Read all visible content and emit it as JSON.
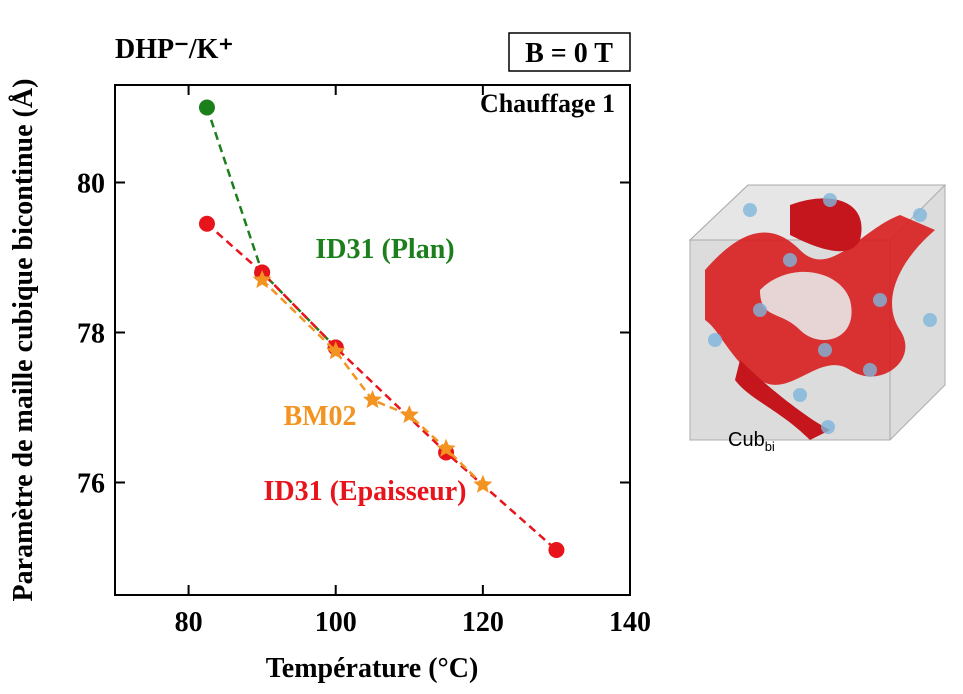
{
  "chart_data": {
    "type": "scatter",
    "title": "DHP⁻/K⁺",
    "annotations": [
      "B = 0 T",
      "Chauffage 1"
    ],
    "x_label": "Température (°C)",
    "y_label": "Paramètre de maille cubique bicontinue (Å)",
    "xlim": [
      70,
      140
    ],
    "xticks": [
      80,
      100,
      120,
      140
    ],
    "ylim": [
      74.5,
      81.3
    ],
    "yticks": [
      76,
      78,
      80
    ],
    "series": [
      {
        "name": "ID31 (Plan)",
        "color": "#1b7f1b",
        "marker": "circle",
        "x": [
          82.5,
          90,
          100
        ],
        "values": [
          81.0,
          78.8,
          77.8
        ]
      },
      {
        "name": "ID31 (Epaisseur)",
        "color": "#e8141c",
        "marker": "circle",
        "x": [
          82.5,
          90,
          100,
          115,
          130
        ],
        "values": [
          79.45,
          78.8,
          77.8,
          76.4,
          75.1
        ]
      },
      {
        "name": "BM02",
        "color": "#f39321",
        "marker": "star",
        "x": [
          90,
          100,
          105,
          110,
          115,
          120
        ],
        "values": [
          78.7,
          77.75,
          77.1,
          76.9,
          76.45,
          75.97
        ]
      }
    ],
    "inset_label": "Cub",
    "inset_label_sub": "bi"
  }
}
